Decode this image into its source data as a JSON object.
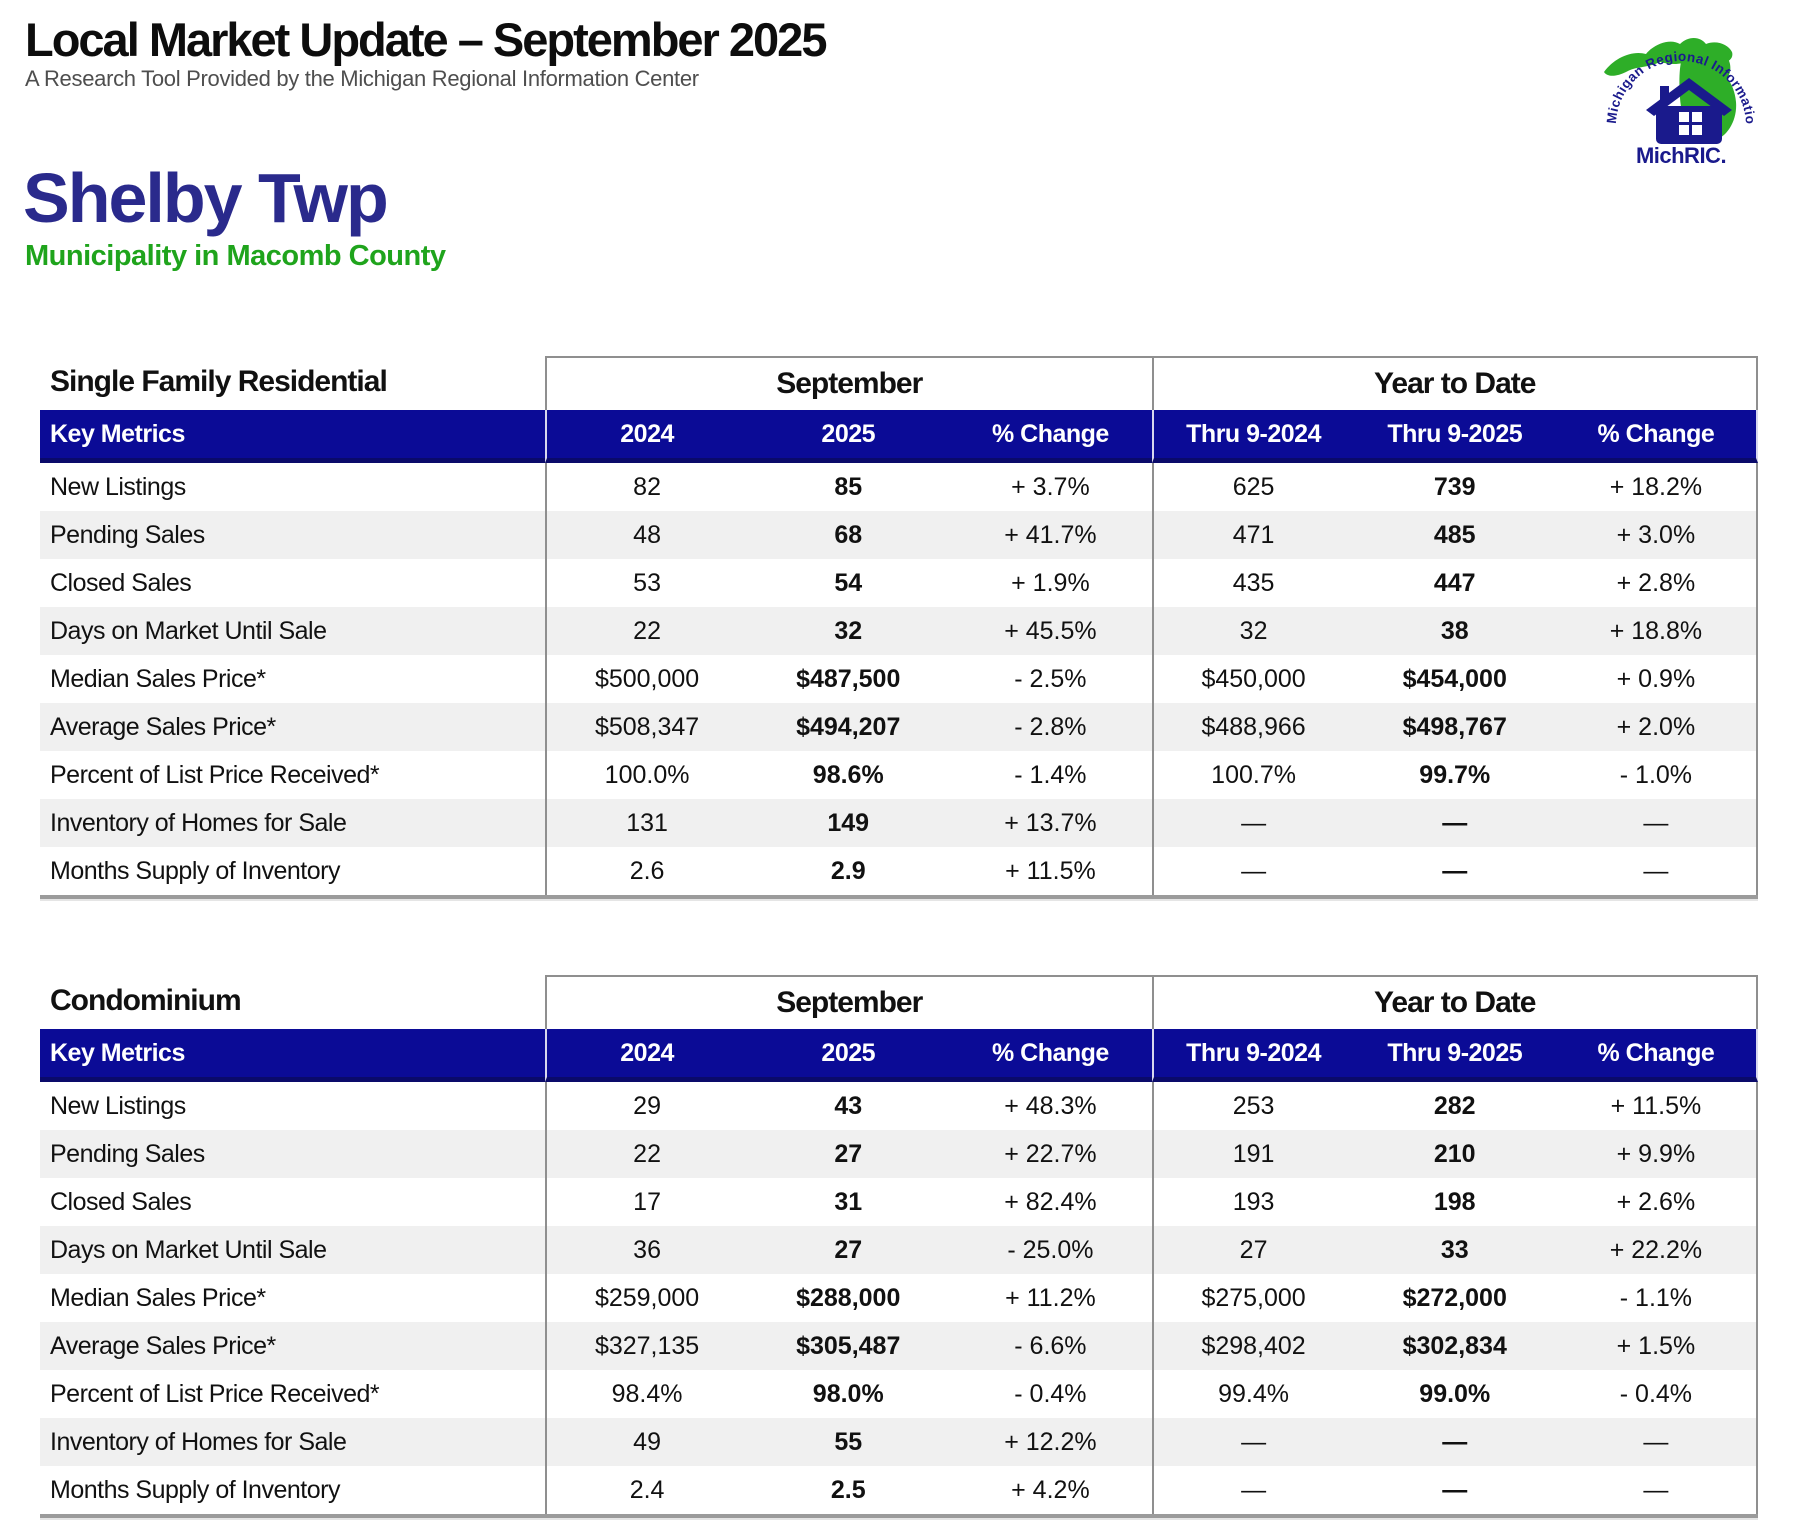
{
  "header": {
    "title": "Local Market Update – September 2025",
    "subtitle": "A Research Tool Provided by the Michigan Regional Information Center"
  },
  "logo": {
    "arc_text": "Michigan Regional Information Center",
    "wordmark": "MichRIC.",
    "green": "#2EAE28",
    "navy": "#1A1A8C"
  },
  "location": {
    "name": "Shelby Twp",
    "subtitle": "Municipality in Macomb County"
  },
  "columns": {
    "metrics_label": "Key Metrics",
    "month_group": "September",
    "ytd_group": "Year to Date",
    "month_cols": [
      "2024",
      "2025",
      "% Change"
    ],
    "ytd_cols": [
      "Thru 9-2024",
      "Thru 9-2025",
      "% Change"
    ]
  },
  "tables": [
    {
      "title": "Single Family Residential",
      "rows": [
        {
          "metric": "New Listings",
          "values": [
            "82",
            "85",
            "+ 3.7%",
            "625",
            "739",
            "+ 18.2%"
          ]
        },
        {
          "metric": "Pending Sales",
          "values": [
            "48",
            "68",
            "+ 41.7%",
            "471",
            "485",
            "+ 3.0%"
          ]
        },
        {
          "metric": "Closed Sales",
          "values": [
            "53",
            "54",
            "+ 1.9%",
            "435",
            "447",
            "+ 2.8%"
          ]
        },
        {
          "metric": "Days on Market Until Sale",
          "values": [
            "22",
            "32",
            "+ 45.5%",
            "32",
            "38",
            "+ 18.8%"
          ]
        },
        {
          "metric": "Median Sales Price*",
          "values": [
            "$500,000",
            "$487,500",
            "- 2.5%",
            "$450,000",
            "$454,000",
            "+ 0.9%"
          ]
        },
        {
          "metric": "Average Sales Price*",
          "values": [
            "$508,347",
            "$494,207",
            "- 2.8%",
            "$488,966",
            "$498,767",
            "+ 2.0%"
          ]
        },
        {
          "metric": "Percent of List Price Received*",
          "values": [
            "100.0%",
            "98.6%",
            "- 1.4%",
            "100.7%",
            "99.7%",
            "- 1.0%"
          ]
        },
        {
          "metric": "Inventory of Homes for Sale",
          "values": [
            "131",
            "149",
            "+ 13.7%",
            "—",
            "—",
            "—"
          ]
        },
        {
          "metric": "Months Supply of Inventory",
          "values": [
            "2.6",
            "2.9",
            "+ 11.5%",
            "—",
            "—",
            "—"
          ]
        }
      ]
    },
    {
      "title": "Condominium",
      "rows": [
        {
          "metric": "New Listings",
          "values": [
            "29",
            "43",
            "+ 48.3%",
            "253",
            "282",
            "+ 11.5%"
          ]
        },
        {
          "metric": "Pending Sales",
          "values": [
            "22",
            "27",
            "+ 22.7%",
            "191",
            "210",
            "+ 9.9%"
          ]
        },
        {
          "metric": "Closed Sales",
          "values": [
            "17",
            "31",
            "+ 82.4%",
            "193",
            "198",
            "+ 2.6%"
          ]
        },
        {
          "metric": "Days on Market Until Sale",
          "values": [
            "36",
            "27",
            "- 25.0%",
            "27",
            "33",
            "+ 22.2%"
          ]
        },
        {
          "metric": "Median Sales Price*",
          "values": [
            "$259,000",
            "$288,000",
            "+ 11.2%",
            "$275,000",
            "$272,000",
            "- 1.1%"
          ]
        },
        {
          "metric": "Average Sales Price*",
          "values": [
            "$327,135",
            "$305,487",
            "- 6.6%",
            "$298,402",
            "$302,834",
            "+ 1.5%"
          ]
        },
        {
          "metric": "Percent of List Price Received*",
          "values": [
            "98.4%",
            "98.0%",
            "- 0.4%",
            "99.4%",
            "99.0%",
            "- 0.4%"
          ]
        },
        {
          "metric": "Inventory of Homes for Sale",
          "values": [
            "49",
            "55",
            "+ 12.2%",
            "—",
            "—",
            "—"
          ]
        },
        {
          "metric": "Months Supply of Inventory",
          "values": [
            "2.4",
            "2.5",
            "+ 4.2%",
            "—",
            "—",
            "—"
          ]
        }
      ]
    }
  ]
}
